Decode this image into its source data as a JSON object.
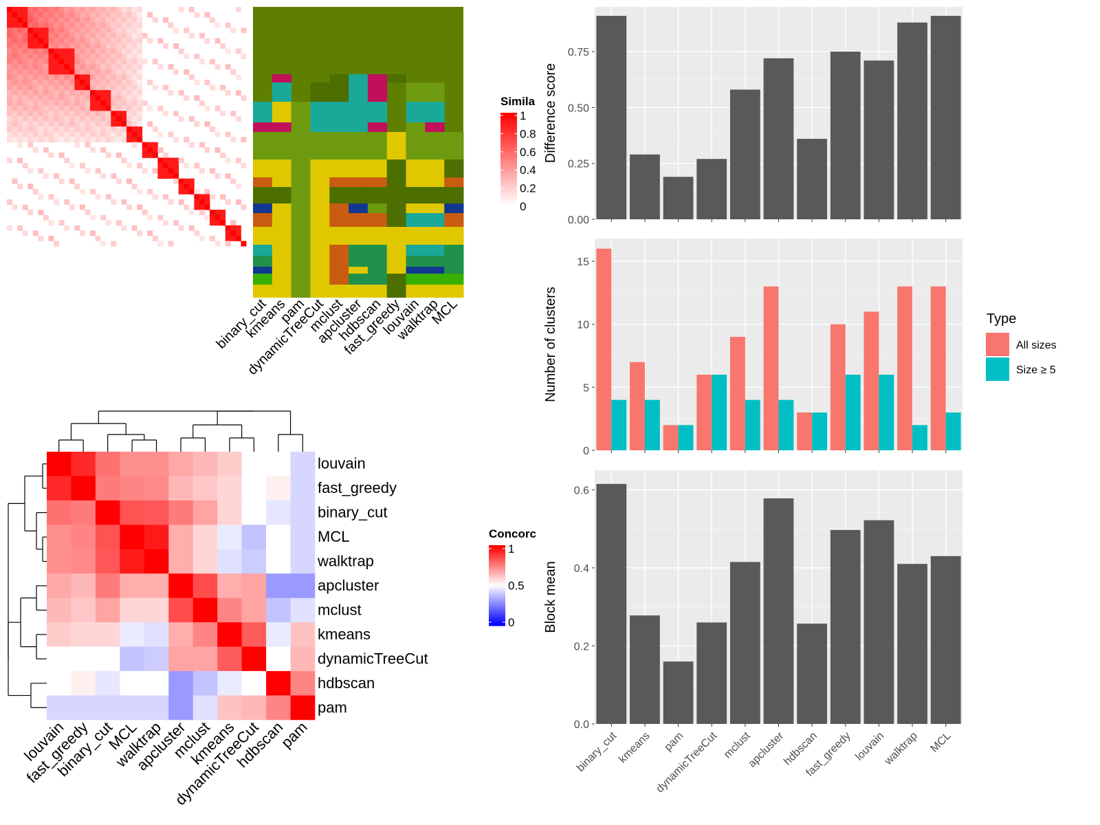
{
  "methods_order": [
    "binary_cut",
    "kmeans",
    "pam",
    "dynamicTreeCut",
    "mclust",
    "apcluster",
    "hdbscan",
    "fast_greedy",
    "louvain",
    "walktrap",
    "MCL"
  ],
  "similarity_legend": {
    "title": "Simila",
    "ticks": [
      "1",
      "0.8",
      "0.6",
      "0.4",
      "0.2",
      "0"
    ]
  },
  "concordance_legend": {
    "title": "Concorc",
    "ticks": [
      "1",
      "0.5",
      "0"
    ]
  },
  "palette": {
    "olive": "#5f7f00",
    "green": "#6e9a10",
    "darkgreen": "#4d6e00",
    "yellow": "#e0c800",
    "orange": "#c95c10",
    "teal": "#1aa898",
    "magenta": "#c0105a",
    "navy": "#103890",
    "forest": "#20904a",
    "lime": "#38b000",
    "red": "#ff0000",
    "blue": "#0000ff",
    "bar_gray": "#595959",
    "all_sizes": "#f8766d",
    "size5": "#00bfc4",
    "panel_bg": "#ebebeb"
  },
  "cluster_rows": [
    [
      1,
      0,
      0,
      0,
      0,
      0,
      0,
      0,
      0,
      0,
      0
    ],
    [
      1,
      0,
      0,
      0,
      0,
      0,
      0,
      0,
      0,
      0,
      0
    ],
    [
      1,
      0,
      0,
      0,
      0,
      0,
      0,
      0,
      0,
      0,
      0
    ],
    [
      1,
      0,
      0,
      0,
      0,
      0,
      0,
      0,
      0,
      0,
      0
    ],
    [
      1,
      0,
      0,
      0,
      0,
      0,
      0,
      0,
      0,
      0,
      0
    ],
    [
      1,
      0,
      0,
      0,
      0,
      0,
      0,
      0,
      0,
      0,
      0
    ],
    [
      1,
      0,
      0,
      0,
      0,
      0,
      0,
      0,
      0,
      0,
      0
    ],
    [
      1,
      0,
      0,
      0,
      0,
      0,
      0,
      0,
      0,
      0,
      0
    ],
    [
      1,
      0,
      0,
      0,
      0,
      0,
      0,
      0,
      0,
      0,
      0
    ],
    [
      1,
      0,
      0,
      0,
      0,
      0,
      0,
      0,
      0,
      0,
      0
    ],
    [
      1,
      0,
      0,
      0,
      0,
      0,
      0,
      0,
      0,
      0,
      0
    ],
    [
      1,
      0,
      0,
      0,
      0,
      0,
      0,
      0,
      0,
      0,
      0
    ],
    [
      1,
      0,
      0,
      0,
      0,
      0,
      0,
      0,
      0,
      0,
      0
    ],
    [
      1,
      0,
      0,
      0,
      0,
      0,
      0,
      0,
      0,
      0,
      0
    ],
    [
      1,
      0,
      0,
      0,
      0,
      0,
      0,
      0,
      0,
      0,
      0
    ],
    [
      1,
      0,
      0,
      0,
      0,
      0,
      0,
      0,
      0,
      0,
      0
    ],
    [
      1,
      0,
      0,
      0,
      0,
      0,
      0,
      0,
      0,
      0,
      0
    ],
    [
      1,
      0,
      0,
      0,
      0,
      0,
      0,
      0,
      0,
      0,
      0
    ],
    [
      1,
      0,
      0,
      0,
      0,
      0,
      0,
      0,
      0,
      0,
      0
    ],
    [
      1,
      0,
      0,
      0,
      0,
      0,
      0,
      0,
      0,
      0,
      0
    ],
    [
      1,
      0,
      0,
      0,
      0,
      0,
      0,
      0,
      0,
      0,
      0
    ],
    [
      1,
      0,
      0,
      0,
      0,
      0,
      0,
      0,
      0,
      0,
      0
    ],
    [
      1,
      0,
      0,
      0,
      0,
      0,
      0,
      0,
      0,
      0,
      0
    ],
    [
      1,
      0,
      0,
      0,
      0,
      0,
      0,
      0,
      0,
      0,
      0
    ],
    [
      1,
      0,
      0,
      0,
      0,
      0,
      0,
      0,
      0,
      0,
      0
    ],
    [
      0,
      0,
      0,
      0,
      0,
      0,
      0,
      0,
      0,
      0,
      0
    ],
    [
      0,
      0,
      0,
      0,
      0,
      0,
      0,
      0,
      0,
      0,
      0
    ],
    [
      0,
      0,
      0,
      0,
      0,
      0,
      0,
      0,
      0,
      0,
      0
    ],
    [
      0,
      0,
      0,
      0,
      0,
      0,
      0,
      0,
      0,
      0,
      0
    ],
    [
      0,
      0,
      0,
      0,
      0,
      0,
      0,
      0,
      0,
      0,
      0
    ],
    [
      0,
      0,
      0,
      0,
      0,
      0,
      0,
      0,
      0,
      0,
      0
    ],
    [
      0,
      0,
      0,
      0,
      0,
      0,
      0,
      0,
      0,
      0,
      0
    ],
    [
      0,
      0,
      0,
      0,
      0,
      0,
      0,
      0,
      0,
      0,
      0
    ],
    [
      0,
      0,
      0,
      0,
      0,
      0,
      0,
      0,
      0,
      0,
      0
    ],
    [
      0,
      0,
      0,
      0,
      0,
      0,
      0,
      0,
      0,
      0,
      0
    ],
    [
      0,
      0,
      0,
      0,
      0,
      0,
      0,
      0,
      0,
      0,
      0
    ],
    [
      0,
      0,
      0,
      0,
      0,
      0,
      0,
      0,
      0,
      0,
      0
    ],
    [
      0,
      0,
      0,
      0,
      0,
      0,
      0,
      0,
      0,
      0,
      0
    ],
    [
      0,
      0,
      0,
      0,
      0,
      0,
      0,
      0,
      0,
      0,
      0
    ],
    [
      0,
      0,
      0,
      0,
      0,
      0,
      0,
      0,
      0,
      0,
      0
    ]
  ],
  "chart_data": [
    {
      "type": "heatmap",
      "panel": "similarity-matrix",
      "legend_title": "Simila",
      "legend_ticks": [
        1,
        0.8,
        0.6,
        0.4,
        0.2,
        0
      ],
      "diagonal_blocks": [
        0,
        4,
        8,
        13,
        16,
        20,
        23,
        26,
        29,
        33,
        36,
        39,
        42,
        45
      ]
    },
    {
      "type": "heatmap",
      "panel": "cluster-labels",
      "columns": [
        "binary_cut",
        "kmeans",
        "pam",
        "dynamicTreeCut",
        "mclust",
        "apcluster",
        "hdbscan",
        "fast_greedy",
        "louvain",
        "walktrap",
        "MCL"
      ]
    },
    {
      "type": "heatmap",
      "panel": "concordance",
      "legend_title": "Concorc",
      "legend_ticks": [
        1,
        0.5,
        0
      ],
      "rows": [
        "louvain",
        "fast_greedy",
        "binary_cut",
        "MCL",
        "walktrap",
        "apcluster",
        "mclust",
        "kmeans",
        "dynamicTreeCut",
        "hdbscan",
        "pam"
      ],
      "columns": [
        "louvain",
        "fast_greedy",
        "binary_cut",
        "MCL",
        "walktrap",
        "apcluster",
        "mclust",
        "kmeans",
        "dynamicTreeCut",
        "hdbscan",
        "pam"
      ],
      "values": [
        [
          1.0,
          0.92,
          0.78,
          0.72,
          0.72,
          0.67,
          0.64,
          0.6,
          0.5,
          0.5,
          0.42
        ],
        [
          0.92,
          1.0,
          0.76,
          0.74,
          0.73,
          0.64,
          0.61,
          0.58,
          0.5,
          0.53,
          0.42
        ],
        [
          0.78,
          0.76,
          1.0,
          0.84,
          0.83,
          0.76,
          0.68,
          0.58,
          0.5,
          0.45,
          0.42
        ],
        [
          0.72,
          0.74,
          0.84,
          1.0,
          0.95,
          0.66,
          0.58,
          0.46,
          0.38,
          0.5,
          0.42
        ],
        [
          0.72,
          0.73,
          0.83,
          0.95,
          1.0,
          0.66,
          0.58,
          0.44,
          0.4,
          0.5,
          0.42
        ],
        [
          0.67,
          0.64,
          0.76,
          0.66,
          0.66,
          1.0,
          0.85,
          0.66,
          0.68,
          0.3,
          0.3
        ],
        [
          0.64,
          0.61,
          0.68,
          0.58,
          0.58,
          0.85,
          1.0,
          0.74,
          0.68,
          0.38,
          0.44
        ],
        [
          0.6,
          0.58,
          0.58,
          0.46,
          0.44,
          0.66,
          0.74,
          1.0,
          0.82,
          0.46,
          0.62
        ],
        [
          0.5,
          0.5,
          0.5,
          0.38,
          0.4,
          0.68,
          0.68,
          0.82,
          1.0,
          0.5,
          0.64
        ],
        [
          0.5,
          0.53,
          0.45,
          0.5,
          0.5,
          0.3,
          0.38,
          0.46,
          0.5,
          1.0,
          0.74
        ],
        [
          0.42,
          0.42,
          0.42,
          0.42,
          0.42,
          0.3,
          0.44,
          0.62,
          0.64,
          0.74,
          1.0
        ]
      ]
    },
    {
      "type": "bar",
      "panel": "difference-score",
      "categories": [
        "binary_cut",
        "kmeans",
        "pam",
        "dynamicTreeCut",
        "mclust",
        "apcluster",
        "hdbscan",
        "fast_greedy",
        "louvain",
        "walktrap",
        "MCL"
      ],
      "values": [
        0.91,
        0.29,
        0.19,
        0.27,
        0.58,
        0.72,
        0.36,
        0.75,
        0.71,
        0.88,
        0.91
      ],
      "ylabel": "Difference score",
      "ylim": [
        0,
        0.95
      ],
      "yticks": [
        0.0,
        0.25,
        0.5,
        0.75
      ]
    },
    {
      "type": "bar",
      "panel": "number-of-clusters",
      "categories": [
        "binary_cut",
        "kmeans",
        "pam",
        "dynamicTreeCut",
        "mclust",
        "apcluster",
        "hdbscan",
        "fast_greedy",
        "louvain",
        "walktrap",
        "MCL"
      ],
      "series": [
        {
          "name": "All sizes",
          "values": [
            16,
            7,
            2,
            6,
            9,
            13,
            3,
            10,
            11,
            13,
            13
          ]
        },
        {
          "name": "Size ≥ 5",
          "values": [
            4,
            4,
            2,
            6,
            4,
            4,
            3,
            6,
            6,
            2,
            3
          ]
        }
      ],
      "ylabel": "Number of clusters",
      "ylim": [
        0,
        16.8
      ],
      "yticks": [
        0,
        5,
        10,
        15
      ],
      "legend_title": "Type",
      "legend_position": "right"
    },
    {
      "type": "bar",
      "panel": "block-mean",
      "categories": [
        "binary_cut",
        "kmeans",
        "pam",
        "dynamicTreeCut",
        "mclust",
        "apcluster",
        "hdbscan",
        "fast_greedy",
        "louvain",
        "walktrap",
        "MCL"
      ],
      "values": [
        0.615,
        0.278,
        0.16,
        0.26,
        0.415,
        0.578,
        0.257,
        0.497,
        0.522,
        0.41,
        0.43
      ],
      "ylabel": "Block mean",
      "ylim": [
        0,
        0.65
      ],
      "yticks": [
        0.0,
        0.2,
        0.4,
        0.6
      ]
    }
  ]
}
